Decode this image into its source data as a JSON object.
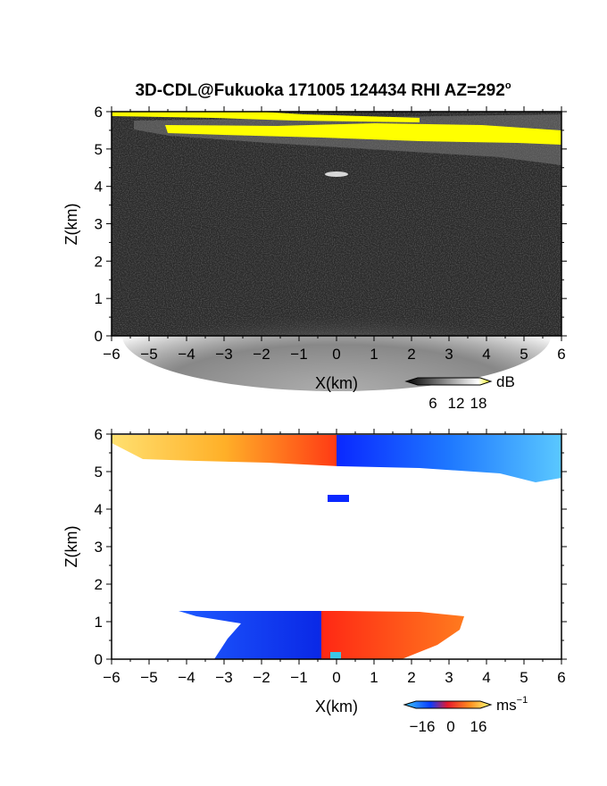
{
  "title": "3D-CDL@Fukuoka 171005 124434 RHI AZ=292",
  "title_degree": "o",
  "chart_data": [
    {
      "type": "heatmap",
      "quantity": "reflectivity",
      "xlabel": "X(km)",
      "ylabel": "Z(km)",
      "xlim": [
        -6,
        6
      ],
      "ylim": [
        0,
        6
      ],
      "xticks": [
        "-6",
        "-5",
        "-4",
        "-3",
        "-2",
        "-1",
        "0",
        "1",
        "2",
        "3",
        "4",
        "5",
        "6"
      ],
      "yticks": [
        "0",
        "1",
        "2",
        "3",
        "4",
        "5",
        "6"
      ],
      "colorbar": {
        "ticks": [
          "6",
          "12",
          "18"
        ],
        "unit": "dB",
        "values": [
          6,
          12,
          18
        ]
      },
      "colormap": "grayscale-to-yellow",
      "grid": false
    },
    {
      "type": "heatmap",
      "quantity": "doppler-velocity",
      "xlabel": "X(km)",
      "ylabel": "Z(km)",
      "xlim": [
        -6,
        6
      ],
      "ylim": [
        0,
        6
      ],
      "xticks": [
        "-6",
        "-5",
        "-4",
        "-3",
        "-2",
        "-1",
        "0",
        "1",
        "2",
        "3",
        "4",
        "5",
        "6"
      ],
      "yticks": [
        "0",
        "1",
        "2",
        "3",
        "4",
        "5",
        "6"
      ],
      "colorbar": {
        "ticks": [
          "−16",
          "0",
          "16"
        ],
        "unit": "ms",
        "unit_exp": "−1",
        "values": [
          -16,
          0,
          16
        ]
      },
      "colormap": "blue-red-yellow diverging",
      "grid": false
    }
  ],
  "colors": {
    "background_dark": "#2a2a2a",
    "high_reflectivity": "#ffff00",
    "velocity_negative": "#0a3cff",
    "velocity_negative_far": "#3cb4ff",
    "velocity_zero": "#e6192d",
    "velocity_positive": "#ff8c1e",
    "velocity_positive_far": "#ffe66e"
  }
}
